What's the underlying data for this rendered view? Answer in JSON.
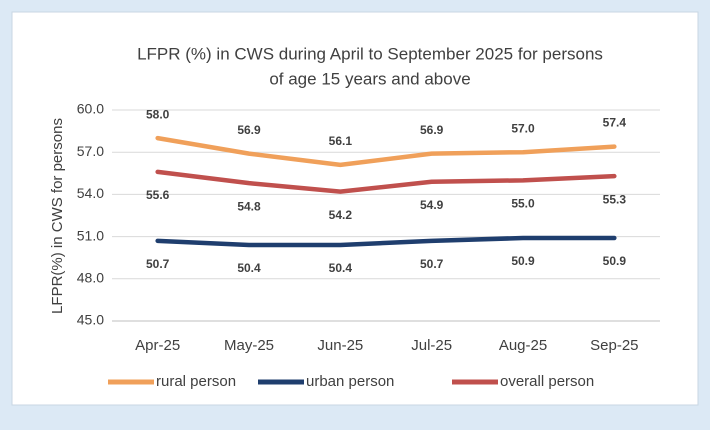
{
  "chart_data": {
    "type": "line",
    "title": [
      "LFPR (%) in CWS during April to September  2025 for persons",
      "of age 15 years and above"
    ],
    "y_label": "LFPR(%) in CWS for persons",
    "categories": [
      "Apr-25",
      "May-25",
      "Jun-25",
      "Jul-25",
      "Aug-25",
      "Sep-25"
    ],
    "series": [
      {
        "name": "rural person",
        "color": "#f0a05a",
        "values": [
          58.0,
          56.9,
          56.1,
          56.9,
          57.0,
          57.4
        ],
        "value_labels": [
          "58.0",
          "56.9",
          "56.1",
          "56.9",
          "57.0",
          "57.4"
        ],
        "label_side": "above"
      },
      {
        "name": "urban person",
        "color": "#1f3e6e",
        "values": [
          50.7,
          50.4,
          50.4,
          50.7,
          50.9,
          50.9
        ],
        "value_labels": [
          "50.7",
          "50.4",
          "50.4",
          "50.7",
          "50.9",
          "50.9"
        ],
        "label_side": "below"
      },
      {
        "name": "overall person",
        "color": "#c0504d",
        "values": [
          55.6,
          54.8,
          54.2,
          54.9,
          55.0,
          55.3
        ],
        "value_labels": [
          "55.6",
          "54.8",
          "54.2",
          "54.9",
          "55.0",
          "55.3"
        ],
        "label_side": "below"
      }
    ],
    "ylim": [
      45,
      60
    ],
    "yticks": [
      {
        "value": 45,
        "label": "45.0"
      },
      {
        "value": 48,
        "label": "48.0"
      },
      {
        "value": 51,
        "label": "51.0"
      },
      {
        "value": 54,
        "label": "54.0"
      },
      {
        "value": 57,
        "label": "57.0"
      },
      {
        "value": 60,
        "label": "60.0"
      }
    ],
    "grid": true,
    "legend": "bottom"
  }
}
